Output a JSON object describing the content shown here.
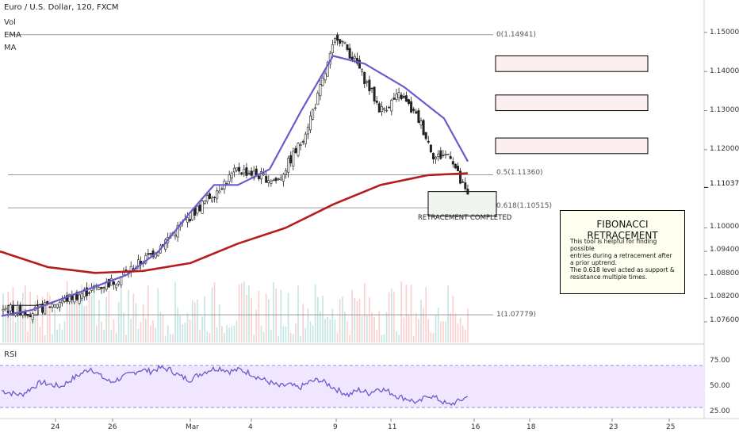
{
  "header": {
    "title": "Euro / U.S. Dollar, 120, FXCM",
    "indicators": [
      "Vol",
      "EMA",
      "MA"
    ]
  },
  "current_price": "1.11037",
  "price_axis": {
    "ticks": [
      "1.15000",
      "1.14000",
      "1.13000",
      "1.12000",
      "1.10000",
      "1.09400",
      "1.08800",
      "1.08200",
      "1.07600"
    ]
  },
  "rsi_panel": {
    "label": "RSI",
    "ticks": [
      "75.00",
      "50.00",
      "25.00"
    ]
  },
  "time_axis": {
    "labels": [
      "24",
      "26",
      "Mar",
      "4",
      "9",
      "11",
      "16",
      "18",
      "23",
      "25"
    ]
  },
  "fibonacci": {
    "levels": [
      {
        "label": "0(1.14941)",
        "price": 1.14941
      },
      {
        "label": "0.5(1.11360)",
        "price": 1.1136
      },
      {
        "label": "0.618(1.10515)",
        "price": 1.10515
      },
      {
        "label": "1(1.07779)",
        "price": 1.07779
      }
    ]
  },
  "annotations": {
    "retracement": "RETRACEMENT COMPLETED"
  },
  "info_box": {
    "title": "FIBONACCI RETRACEMENT",
    "lines": [
      "This tool is helpful for finding possible",
      "entries during a retracement after",
      "a prior uptrend.",
      "The 0.618 level acted as support &",
      "resistance multiple times."
    ]
  },
  "colors": {
    "bull": "#26a69a",
    "bear": "#ef5350",
    "ema": "#6a5acd",
    "ma": "#b71c1c",
    "rsi_line": "#6a5acd",
    "rsi_band": "#f0e6ff",
    "zone_fill": "#fdeef0"
  },
  "chart_data": {
    "type": "candlestick",
    "title": "Euro / U.S. Dollar, 120, FXCM",
    "ylim": [
      1.0736,
      1.1542
    ],
    "key_points": [
      {
        "x": "start",
        "y": 1.0795
      },
      {
        "x": "26",
        "y": 1.0865
      },
      {
        "x": "4",
        "y": 1.115
      },
      {
        "x": "9",
        "y": 1.1494
      },
      {
        "x": "11",
        "y": 1.131
      },
      {
        "x": "13",
        "y": 1.118
      },
      {
        "x": "15",
        "y": 1.108
      }
    ],
    "ema": [
      1.0775,
      1.079,
      1.082,
      1.085,
      1.088,
      1.094,
      1.104,
      1.111,
      1.111,
      1.115,
      1.13,
      1.144,
      1.142,
      1.136,
      1.128,
      1.117
    ],
    "ma": [
      1.094,
      1.09,
      1.0885,
      1.089,
      1.091,
      1.096,
      1.1,
      1.106,
      1.111,
      1.1135,
      1.114
    ],
    "rsi_ylim": [
      20,
      85
    ],
    "rsi": [
      45,
      42,
      40,
      48,
      55,
      52,
      50,
      58,
      65,
      72,
      62,
      55,
      60,
      65,
      70,
      68,
      72,
      70,
      62,
      58,
      65,
      70,
      72,
      68,
      70,
      66,
      60,
      55,
      50,
      52,
      48,
      55,
      58,
      52,
      45,
      40,
      46,
      42,
      48,
      44,
      38,
      35,
      30,
      40,
      35,
      28,
      32,
      38
    ]
  }
}
